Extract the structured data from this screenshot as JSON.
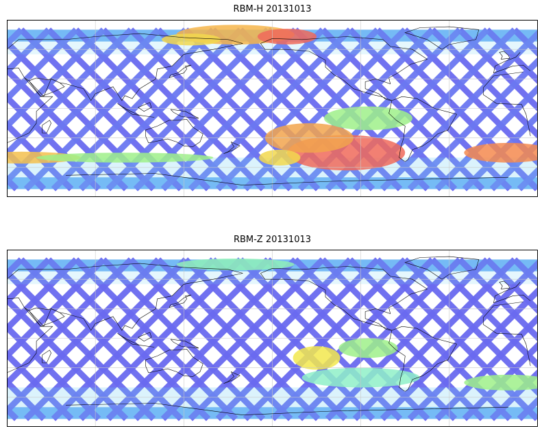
{
  "panels": [
    {
      "title": "RBM-H 20131013",
      "hotspots": [
        {
          "lon": 175,
          "lat": 75,
          "w": 40,
          "h": 10,
          "color": "#f6b54a"
        },
        {
          "lon": 210,
          "lat": 73,
          "w": 20,
          "h": 8,
          "color": "#f06a5a"
        },
        {
          "lon": 145,
          "lat": 70,
          "w": 20,
          "h": 6,
          "color": "#f2d84e"
        },
        {
          "lon": 0,
          "lat": -45,
          "w": 30,
          "h": 10,
          "color": "#f58a4f"
        },
        {
          "lon": 30,
          "lat": -50,
          "w": 40,
          "h": 6,
          "color": "#f3c04e"
        },
        {
          "lon": 100,
          "lat": -50,
          "w": 60,
          "h": 5,
          "color": "#9ff08a"
        },
        {
          "lon": 250,
          "lat": -45,
          "w": 40,
          "h": 18,
          "color": "#f06a5a"
        },
        {
          "lon": 225,
          "lat": -30,
          "w": 30,
          "h": 15,
          "color": "#f2a44e"
        },
        {
          "lon": 265,
          "lat": -10,
          "w": 30,
          "h": 12,
          "color": "#9ff08a"
        },
        {
          "lon": 205,
          "lat": -50,
          "w": 14,
          "h": 8,
          "color": "#f2d84e"
        }
      ]
    },
    {
      "title": "RBM-Z 20131013",
      "hotspots": [
        {
          "lon": 175,
          "lat": 75,
          "w": 40,
          "h": 6,
          "color": "#8ff0b8"
        },
        {
          "lon": 0,
          "lat": -45,
          "w": 30,
          "h": 8,
          "color": "#9ff08a"
        },
        {
          "lon": 230,
          "lat": -20,
          "w": 16,
          "h": 12,
          "color": "#f2e84e"
        },
        {
          "lon": 260,
          "lat": -40,
          "w": 40,
          "h": 10,
          "color": "#8ff0c8"
        },
        {
          "lon": 265,
          "lat": -10,
          "w": 20,
          "h": 10,
          "color": "#9ff08a"
        }
      ]
    }
  ],
  "colors": {
    "swath_base": "#6a6af0",
    "swath_mid": "#5fa8f5",
    "swath_high": "#6ef0e0",
    "grid": "#c8c8c8",
    "coast": "#000000"
  }
}
